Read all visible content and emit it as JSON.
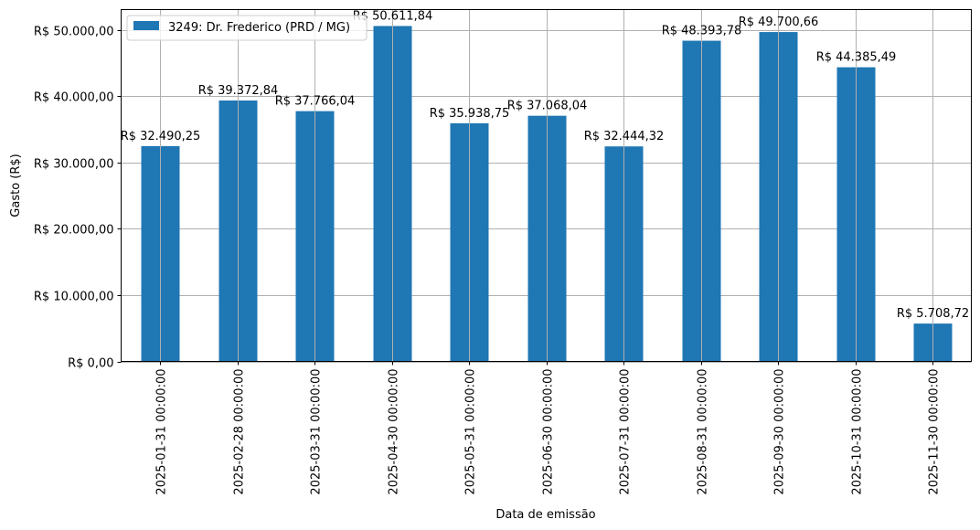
{
  "chart_data": {
    "type": "bar",
    "title": "",
    "xlabel": "Data de emissão",
    "ylabel": "Gasto (R$)",
    "ylim": [
      0,
      53000
    ],
    "grid": true,
    "legend_position": "upper left",
    "categories": [
      "2025-01-31 00:00:00",
      "2025-02-28 00:00:00",
      "2025-03-31 00:00:00",
      "2025-04-30 00:00:00",
      "2025-05-31 00:00:00",
      "2025-06-30 00:00:00",
      "2025-07-31 00:00:00",
      "2025-08-31 00:00:00",
      "2025-09-30 00:00:00",
      "2025-10-31 00:00:00",
      "2025-11-30 00:00:00"
    ],
    "series": [
      {
        "name": "3249: Dr. Frederico (PRD / MG)",
        "color": "#1f77b4",
        "values": [
          32490.25,
          39372.84,
          37766.04,
          50611.84,
          35938.75,
          37068.04,
          32444.32,
          48393.78,
          49700.66,
          44385.49,
          5708.72
        ],
        "labels": [
          "R$ 32.490,25",
          "R$ 39.372,84",
          "R$ 37.766,04",
          "R$ 50.611,84",
          "R$ 35.938,75",
          "R$ 37.068,04",
          "R$ 32.444,32",
          "R$ 48.393,78",
          "R$ 49.700,66",
          "R$ 44.385,49",
          "R$ 5.708,72"
        ]
      }
    ],
    "yticks": [
      0,
      10000,
      20000,
      30000,
      40000,
      50000
    ],
    "ytick_labels": [
      "R$ 0,00",
      "R$ 10.000,00",
      "R$ 20.000,00",
      "R$ 30.000,00",
      "R$ 40.000,00",
      "R$ 50.000,00"
    ]
  },
  "colors": {
    "bar": "#1f77b4",
    "grid": "#b0b0b0",
    "axis": "#000000",
    "legend_border": "#cccccc"
  }
}
